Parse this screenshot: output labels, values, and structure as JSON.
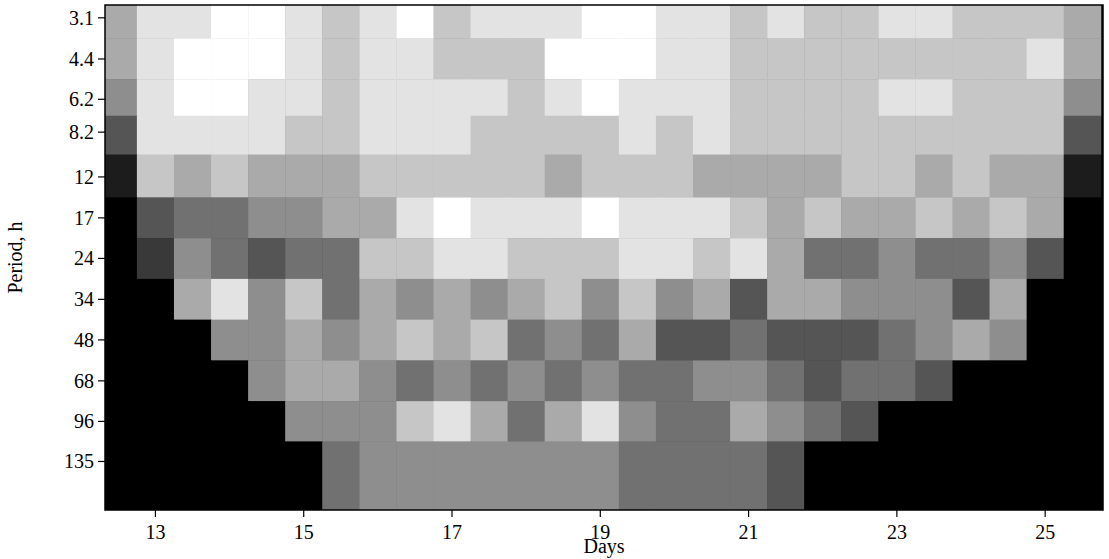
{
  "chart_data": {
    "type": "heatmap",
    "x_label": "Days",
    "y_label": "Period, h",
    "xlim": [
      12.32,
      25.78
    ],
    "ylim": [
      2.78,
      204
    ],
    "xticks": [
      13,
      15,
      17,
      19,
      21,
      23,
      25
    ],
    "yticks": [
      3.1,
      4.4,
      6.2,
      8.2,
      12,
      17,
      24,
      34,
      48,
      68,
      96,
      135
    ],
    "log": "y",
    "x": [
      12.5,
      13,
      13.5,
      14,
      14.5,
      15,
      15.5,
      16,
      16.5,
      17,
      17.5,
      18,
      18.5,
      19,
      19.5,
      20,
      20.5,
      21,
      21.5,
      22,
      22.5,
      23,
      23.5,
      24,
      24.5,
      25,
      25.5
    ],
    "y": [
      3.1,
      4.4,
      6.2,
      8.2,
      12,
      17,
      24,
      34,
      48,
      68,
      96,
      135
    ],
    "zlim": [
      0,
      9
    ],
    "z": [
      [
        6,
        8,
        8,
        9,
        9,
        8,
        7,
        8,
        9,
        7,
        8,
        8,
        8,
        9,
        9,
        8,
        8,
        7,
        8,
        7,
        7,
        8,
        8,
        7,
        7,
        7,
        6
      ],
      [
        6,
        8,
        9,
        9,
        9,
        8,
        7,
        8,
        8,
        7,
        7,
        7,
        9,
        9,
        9,
        8,
        8,
        7,
        7,
        7,
        7,
        7,
        7,
        7,
        7,
        8,
        6
      ],
      [
        5,
        8,
        9,
        9,
        8,
        8,
        7,
        8,
        8,
        8,
        8,
        7,
        8,
        9,
        8,
        8,
        8,
        7,
        7,
        7,
        7,
        8,
        8,
        7,
        7,
        7,
        5
      ],
      [
        3,
        8,
        8,
        8,
        8,
        7,
        7,
        8,
        8,
        8,
        7,
        7,
        7,
        7,
        8,
        7,
        8,
        7,
        7,
        7,
        7,
        7,
        7,
        7,
        7,
        7,
        3
      ],
      [
        1,
        7,
        6,
        7,
        6,
        6,
        6,
        7,
        7,
        7,
        7,
        7,
        6,
        7,
        7,
        7,
        6,
        6,
        6,
        6,
        7,
        7,
        6,
        7,
        6,
        6,
        1
      ],
      [
        0,
        3,
        4,
        4,
        5,
        5,
        6,
        6,
        8,
        9,
        8,
        8,
        8,
        9,
        8,
        8,
        8,
        7,
        6,
        7,
        6,
        6,
        7,
        6,
        7,
        6,
        0
      ],
      [
        0,
        2,
        5,
        4,
        3,
        4,
        4,
        7,
        7,
        8,
        8,
        7,
        7,
        7,
        8,
        8,
        7,
        8,
        6,
        4,
        4,
        5,
        4,
        4,
        5,
        3,
        0
      ],
      [
        0,
        0,
        6,
        8,
        5,
        7,
        4,
        6,
        5,
        6,
        5,
        6,
        7,
        5,
        7,
        5,
        6,
        3,
        6,
        6,
        5,
        5,
        5,
        3,
        6,
        0,
        0
      ],
      [
        0,
        0,
        0,
        5,
        5,
        6,
        5,
        6,
        7,
        6,
        7,
        4,
        5,
        4,
        6,
        3,
        3,
        4,
        3,
        3,
        3,
        4,
        5,
        6,
        5,
        0,
        0
      ],
      [
        0,
        0,
        0,
        0,
        5,
        6,
        6,
        5,
        4,
        5,
        4,
        5,
        4,
        5,
        4,
        4,
        5,
        5,
        4,
        3,
        4,
        4,
        3,
        0,
        0,
        0,
        0
      ],
      [
        0,
        0,
        0,
        0,
        0,
        5,
        5,
        5,
        7,
        8,
        6,
        4,
        6,
        8,
        5,
        4,
        4,
        6,
        5,
        4,
        3,
        0,
        0,
        0,
        0,
        0,
        0
      ],
      [
        0,
        0,
        0,
        0,
        0,
        0,
        4,
        5,
        5,
        5,
        5,
        5,
        5,
        5,
        4,
        4,
        4,
        4,
        3,
        0,
        0,
        0,
        0,
        0,
        0,
        0,
        0
      ]
    ]
  }
}
